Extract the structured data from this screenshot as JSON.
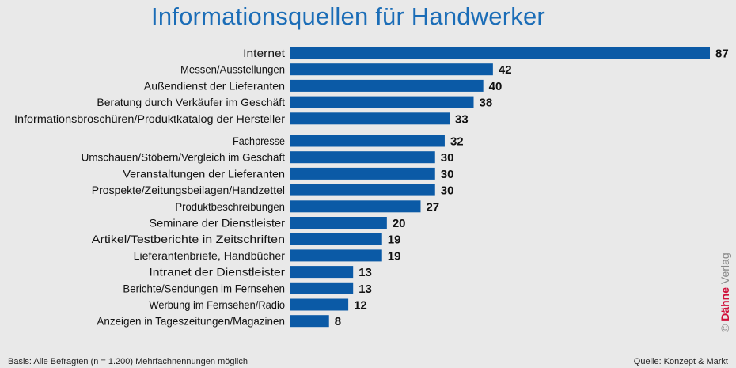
{
  "chart_data": {
    "type": "bar",
    "orientation": "horizontal",
    "title": "Informationsquellen für Handwerker",
    "categories": [
      "Internet",
      "Messen/Ausstellungen",
      "Außendienst der Lieferanten",
      "Beratung durch Verkäufer im Geschäft",
      "Informationsbroschüren/Produktkatalog der Hersteller",
      "Fachpresse",
      "Umschauen/Stöbern/Vergleich im Geschäft",
      "Veranstaltungen der Lieferanten",
      "Prospekte/Zeitungsbeilagen/Handzettel",
      "Produktbeschreibungen",
      "Seminare der Dienstleister",
      "Artikel/Testberichte in Zeitschriften",
      "Lieferantenbriefe, Handbücher",
      "Intranet der Dienstleister",
      "Berichte/Sendungen im Fernsehen",
      "Werbung im Fernsehen/Radio",
      "Anzeigen in Tageszeitungen/Magazinen"
    ],
    "values": [
      87,
      42,
      40,
      38,
      33,
      32,
      30,
      30,
      30,
      27,
      20,
      19,
      19,
      13,
      13,
      12,
      8
    ],
    "xlim": [
      0,
      87
    ],
    "grid": false,
    "bar_color": "#0b5aa6"
  },
  "footer": {
    "basis": "Basis: Alle Befragten (n = 1.200)   Mehrfachnennungen möglich",
    "source": "Quelle: Konzept & Markt"
  },
  "copyright": {
    "symbol": "©",
    "brand": "Dähne",
    "rest": " Verlag"
  },
  "colors": {
    "title": "#1b6db7",
    "brand": "#d0103a"
  }
}
